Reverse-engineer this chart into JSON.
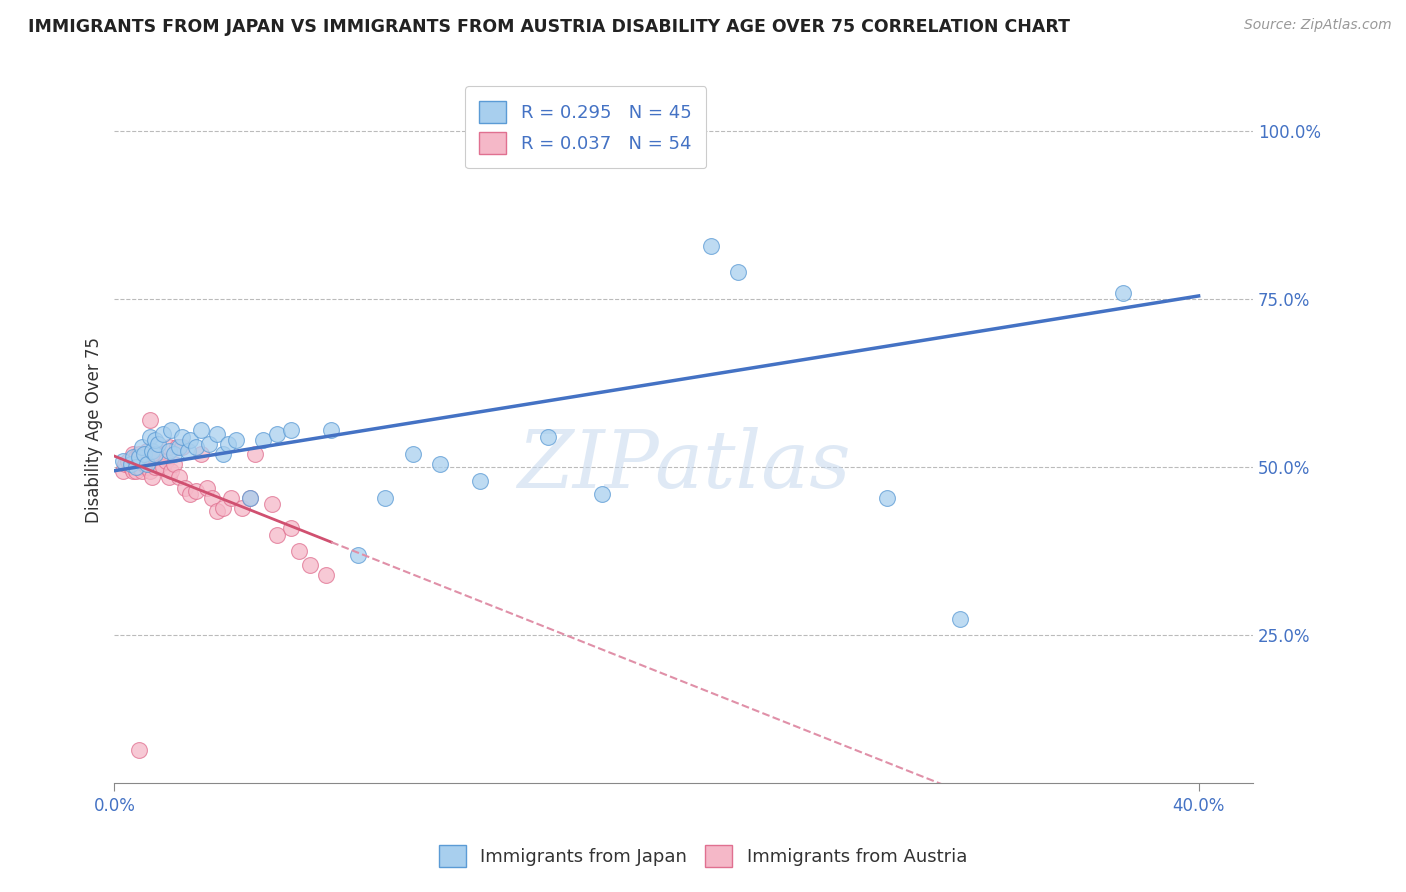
{
  "title": "IMMIGRANTS FROM JAPAN VS IMMIGRANTS FROM AUSTRIA DISABILITY AGE OVER 75 CORRELATION CHART",
  "source": "Source: ZipAtlas.com",
  "ylabel": "Disability Age Over 75",
  "legend_label_blue": "Immigrants from Japan",
  "legend_label_pink": "Immigrants from Austria",
  "R_blue": 0.295,
  "N_blue": 45,
  "R_pink": 0.037,
  "N_pink": 54,
  "xlim": [
    0.0,
    0.42
  ],
  "ylim": [
    0.03,
    1.08
  ],
  "xticks": [
    0.0,
    0.4
  ],
  "yticks": [
    0.25,
    0.5,
    0.75,
    1.0
  ],
  "xtick_labels": [
    "0.0%",
    "40.0%"
  ],
  "ytick_labels": [
    "25.0%",
    "50.0%",
    "75.0%",
    "100.0%"
  ],
  "color_blue": "#A8CFEE",
  "color_pink": "#F5B8C8",
  "edge_blue": "#5B9BD5",
  "edge_pink": "#E07090",
  "trend_blue": "#4472C4",
  "trend_pink_solid": "#D05070",
  "trend_pink_dash": "#E090A8",
  "background_color": "#FFFFFF",
  "watermark": "ZIPatlas",
  "blue_x": [
    0.003,
    0.006,
    0.007,
    0.008,
    0.009,
    0.01,
    0.011,
    0.012,
    0.013,
    0.014,
    0.015,
    0.015,
    0.016,
    0.018,
    0.02,
    0.021,
    0.022,
    0.024,
    0.025,
    0.027,
    0.028,
    0.03,
    0.032,
    0.035,
    0.038,
    0.04,
    0.042,
    0.045,
    0.05,
    0.055,
    0.06,
    0.065,
    0.08,
    0.09,
    0.1,
    0.11,
    0.12,
    0.135,
    0.16,
    0.18,
    0.22,
    0.23,
    0.285,
    0.312,
    0.372
  ],
  "blue_y": [
    0.51,
    0.505,
    0.515,
    0.5,
    0.515,
    0.53,
    0.52,
    0.505,
    0.545,
    0.525,
    0.52,
    0.54,
    0.535,
    0.55,
    0.525,
    0.555,
    0.52,
    0.53,
    0.545,
    0.525,
    0.54,
    0.53,
    0.555,
    0.535,
    0.55,
    0.52,
    0.535,
    0.54,
    0.455,
    0.54,
    0.55,
    0.555,
    0.555,
    0.37,
    0.455,
    0.52,
    0.505,
    0.48,
    0.545,
    0.46,
    0.83,
    0.79,
    0.455,
    0.275,
    0.76
  ],
  "pink_x": [
    0.003,
    0.004,
    0.005,
    0.006,
    0.007,
    0.007,
    0.008,
    0.008,
    0.009,
    0.009,
    0.01,
    0.01,
    0.011,
    0.011,
    0.012,
    0.012,
    0.013,
    0.013,
    0.013,
    0.014,
    0.014,
    0.015,
    0.015,
    0.016,
    0.016,
    0.017,
    0.018,
    0.019,
    0.02,
    0.02,
    0.021,
    0.022,
    0.023,
    0.024,
    0.025,
    0.026,
    0.028,
    0.03,
    0.032,
    0.034,
    0.036,
    0.038,
    0.04,
    0.043,
    0.047,
    0.05,
    0.052,
    0.058,
    0.06,
    0.065,
    0.068,
    0.072,
    0.078,
    0.009
  ],
  "pink_y": [
    0.495,
    0.505,
    0.51,
    0.5,
    0.495,
    0.52,
    0.495,
    0.515,
    0.5,
    0.52,
    0.495,
    0.51,
    0.505,
    0.515,
    0.5,
    0.525,
    0.495,
    0.51,
    0.57,
    0.485,
    0.505,
    0.5,
    0.515,
    0.505,
    0.52,
    0.5,
    0.5,
    0.51,
    0.485,
    0.53,
    0.495,
    0.505,
    0.53,
    0.485,
    0.53,
    0.47,
    0.46,
    0.465,
    0.52,
    0.47,
    0.455,
    0.435,
    0.44,
    0.455,
    0.44,
    0.455,
    0.52,
    0.445,
    0.4,
    0.41,
    0.375,
    0.355,
    0.34,
    0.08
  ]
}
